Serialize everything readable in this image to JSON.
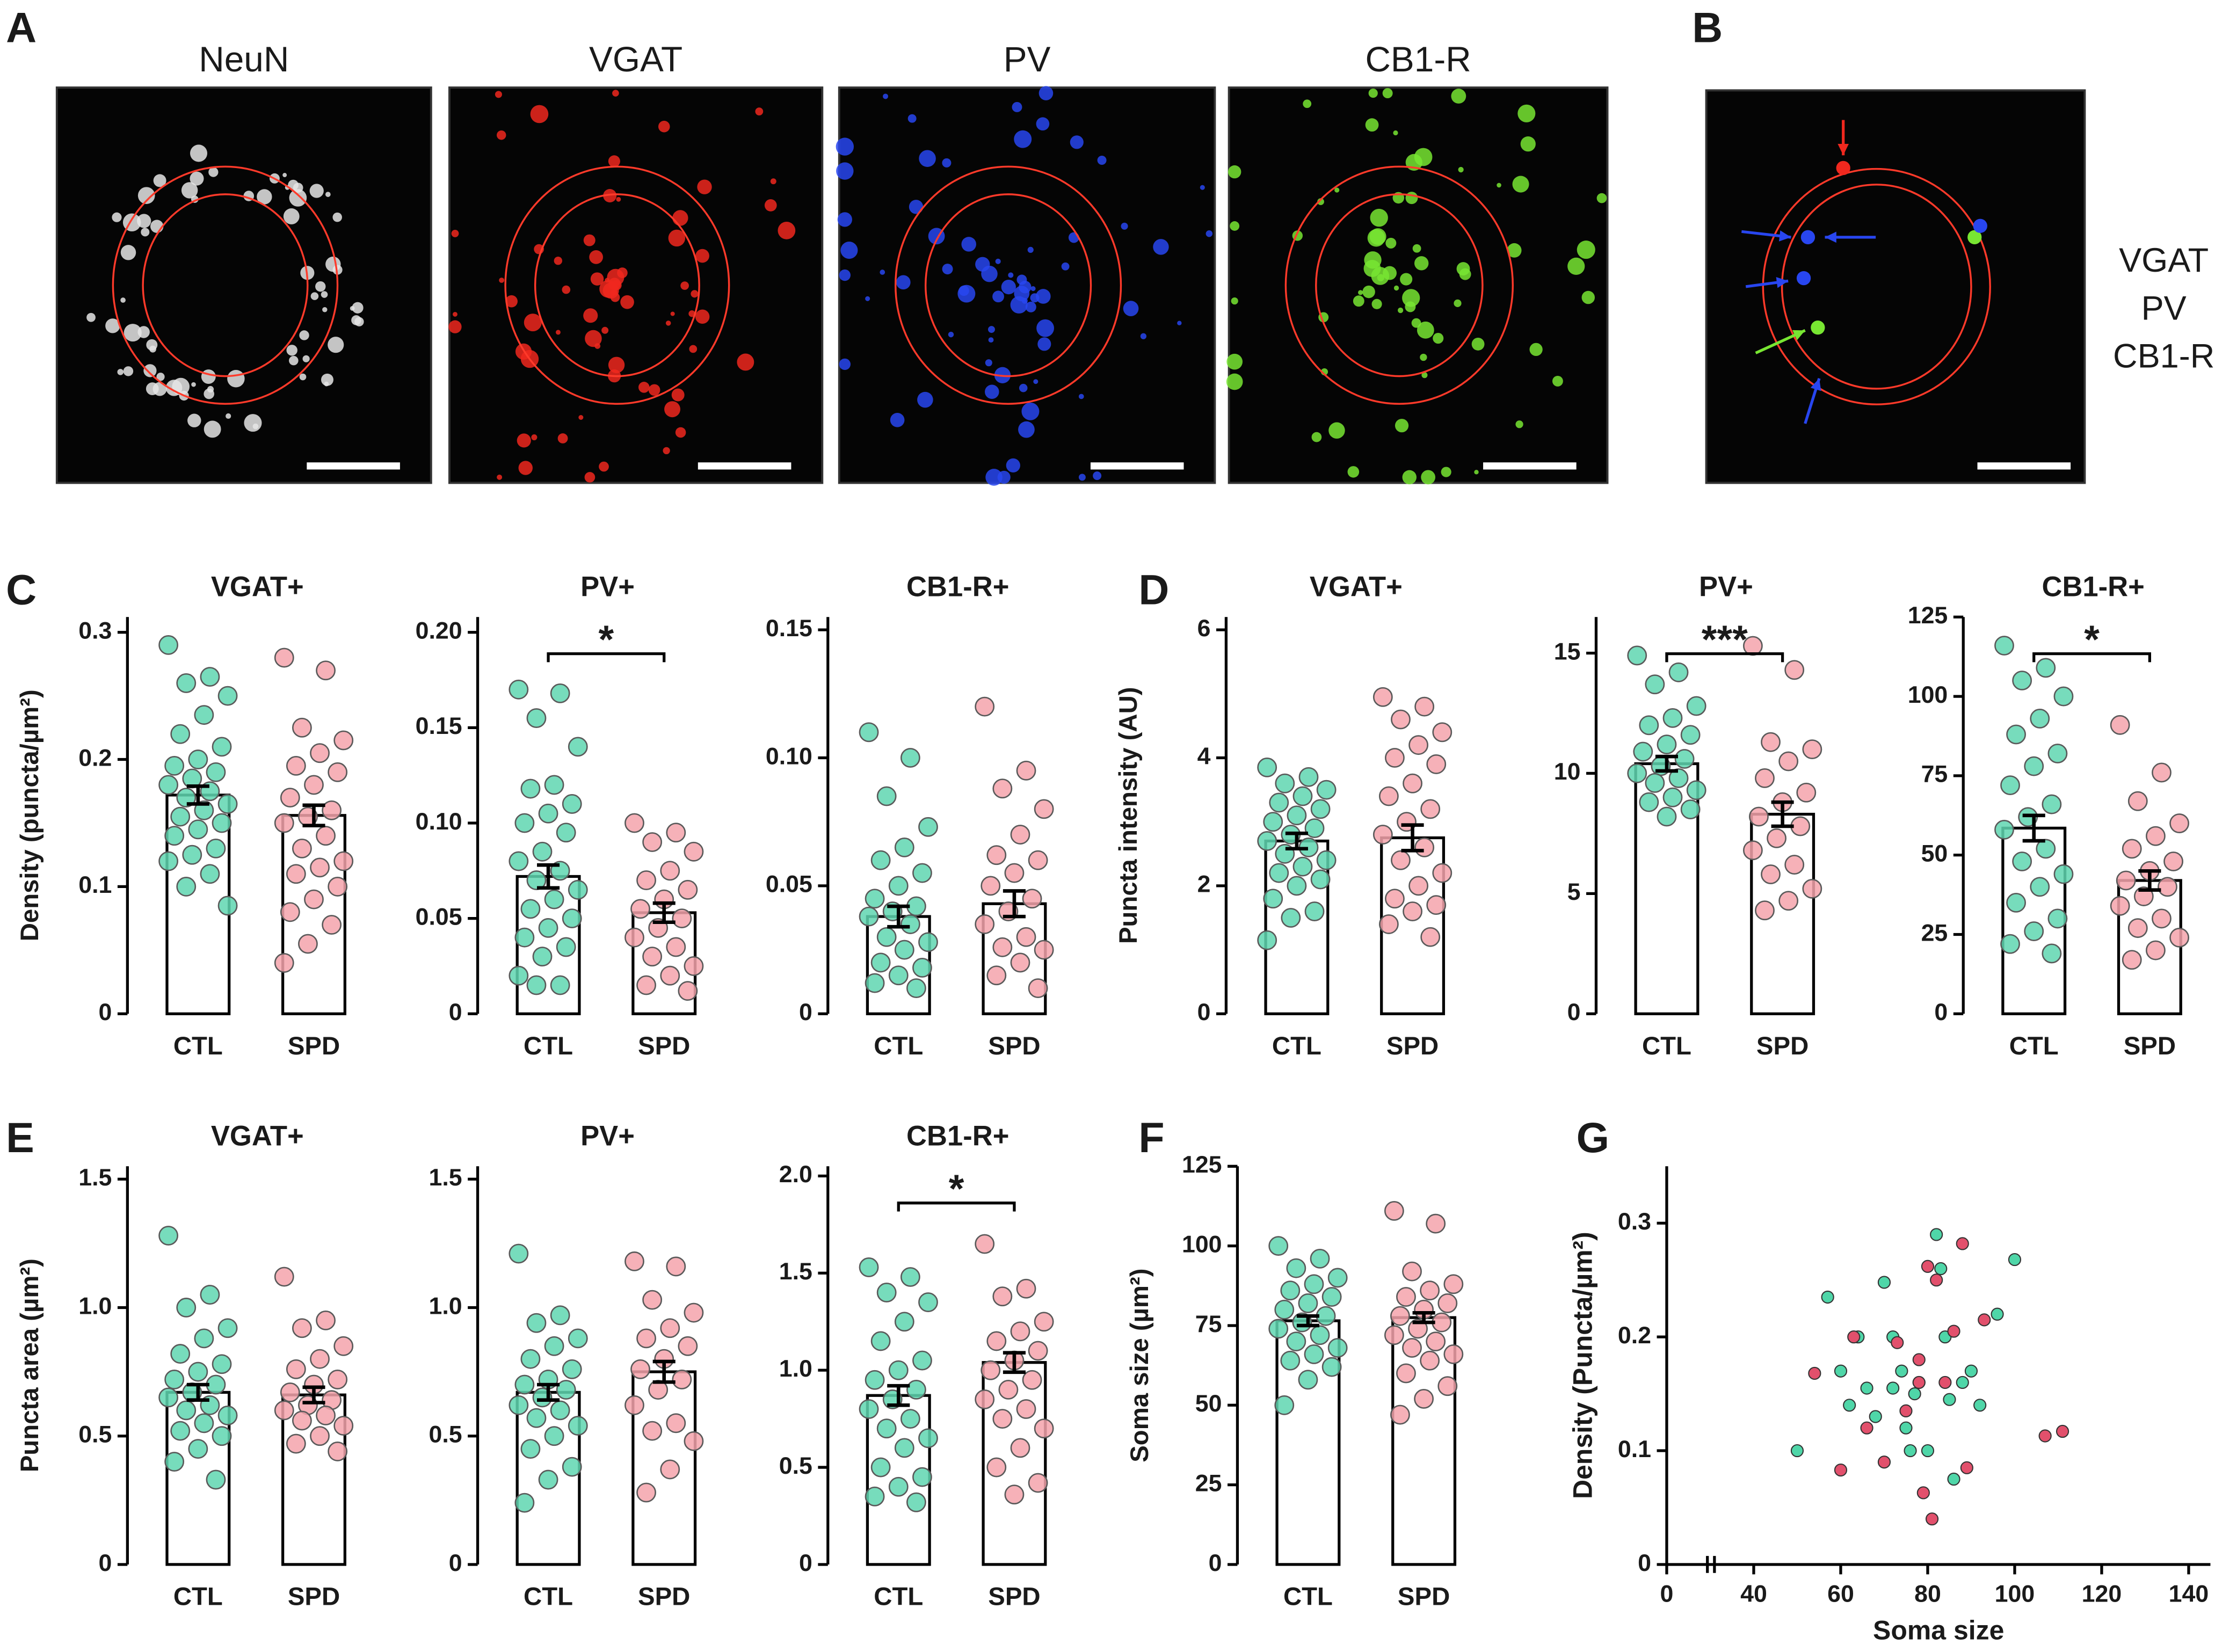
{
  "panel_labels": [
    "A",
    "B",
    "C",
    "D",
    "E",
    "F",
    "G"
  ],
  "micrographs": {
    "channels": [
      {
        "name": "NeuN",
        "color": "#111111"
      },
      {
        "name": "VGAT",
        "color": "#f0281e"
      },
      {
        "name": "PV",
        "color": "#2846f0"
      },
      {
        "name": "CB1-R",
        "color": "#78e632"
      }
    ]
  },
  "chart_data": [
    {
      "type": "bar",
      "title": "VGAT+",
      "ylabel": "Density (puncta/µm²)",
      "categories": [
        "CTL",
        "SPD"
      ],
      "values": [
        0.172,
        0.156
      ],
      "errors": [
        0.007,
        0.008
      ],
      "bar_color": "#ffffff",
      "colors": [
        "#5fd6b0",
        "#f4a3ab"
      ],
      "points": [
        [
          0.29,
          0.265,
          0.26,
          0.25,
          0.235,
          0.22,
          0.21,
          0.2,
          0.195,
          0.19,
          0.185,
          0.18,
          0.175,
          0.17,
          0.165,
          0.16,
          0.155,
          0.15,
          0.145,
          0.14,
          0.13,
          0.125,
          0.12,
          0.11,
          0.1,
          0.085
        ],
        [
          0.28,
          0.27,
          0.225,
          0.215,
          0.205,
          0.195,
          0.19,
          0.18,
          0.17,
          0.16,
          0.155,
          0.15,
          0.14,
          0.13,
          0.12,
          0.115,
          0.11,
          0.1,
          0.09,
          0.08,
          0.07,
          0.055,
          0.04
        ]
      ],
      "ylim": [
        0,
        0.312
      ],
      "yticks": [
        0,
        0.1,
        0.2,
        0.3
      ]
    },
    {
      "type": "bar",
      "title": "PV+",
      "categories": [
        "CTL",
        "SPD"
      ],
      "values": [
        0.072,
        0.053
      ],
      "errors": [
        0.006,
        0.005
      ],
      "bar_color": "#ffffff",
      "colors": [
        "#5fd6b0",
        "#f4a3ab"
      ],
      "points": [
        [
          0.17,
          0.168,
          0.155,
          0.14,
          0.12,
          0.118,
          0.11,
          0.105,
          0.1,
          0.095,
          0.085,
          0.08,
          0.075,
          0.07,
          0.065,
          0.06,
          0.055,
          0.05,
          0.045,
          0.04,
          0.035,
          0.03,
          0.02,
          0.015,
          0.015
        ],
        [
          0.1,
          0.095,
          0.09,
          0.085,
          0.075,
          0.07,
          0.065,
          0.06,
          0.055,
          0.05,
          0.045,
          0.04,
          0.035,
          0.03,
          0.025,
          0.02,
          0.015,
          0.012
        ]
      ],
      "ylim": [
        0,
        0.208
      ],
      "yticks": [
        0,
        0.05,
        {
          "value": 0.1,
          "label": "0.10"
        },
        0.15,
        {
          "value": 0.2,
          "label": "0.20"
        }
      ],
      "significance": "*"
    },
    {
      "type": "bar",
      "title": "CB1-R+",
      "categories": [
        "CTL",
        "SPD"
      ],
      "values": [
        0.038,
        0.043
      ],
      "errors": [
        0.004,
        0.005
      ],
      "bar_color": "#ffffff",
      "colors": [
        "#5fd6b0",
        "#f4a3ab"
      ],
      "points": [
        [
          0.11,
          0.1,
          0.085,
          0.073,
          0.065,
          0.06,
          0.055,
          0.05,
          0.045,
          0.042,
          0.04,
          0.038,
          0.035,
          0.03,
          0.028,
          0.025,
          0.02,
          0.018,
          0.015,
          0.012,
          0.01
        ],
        [
          0.12,
          0.095,
          0.088,
          0.08,
          0.07,
          0.062,
          0.06,
          0.055,
          0.05,
          0.045,
          0.04,
          0.035,
          0.03,
          0.026,
          0.025,
          0.02,
          0.015,
          0.01
        ]
      ],
      "ylim": [
        0,
        0.155
      ],
      "yticks": [
        0,
        0.05,
        {
          "value": 0.1,
          "label": "0.10"
        },
        0.15
      ]
    },
    {
      "type": "bar",
      "title": "VGAT+",
      "ylabel": "Puncta intensity (AU)",
      "categories": [
        "CTL",
        "SPD"
      ],
      "values": [
        2.7,
        2.75
      ],
      "errors": [
        0.12,
        0.2
      ],
      "bar_color": "#ffffff",
      "colors": [
        "#5fd6b0",
        "#f4a3ab"
      ],
      "points": [
        [
          3.85,
          3.7,
          3.6,
          3.5,
          3.4,
          3.3,
          3.2,
          3.1,
          3.0,
          2.9,
          2.8,
          2.7,
          2.6,
          2.5,
          2.4,
          2.3,
          2.2,
          2.1,
          2.0,
          1.8,
          1.6,
          1.5,
          1.15
        ],
        [
          4.95,
          4.8,
          4.6,
          4.4,
          4.2,
          4.0,
          3.9,
          3.6,
          3.4,
          3.2,
          3.0,
          2.8,
          2.6,
          2.4,
          2.2,
          2.0,
          1.8,
          1.7,
          1.6,
          1.4,
          1.2
        ]
      ],
      "ylim": [
        0,
        6.2
      ],
      "yticks": [
        0,
        2,
        4,
        6
      ]
    },
    {
      "type": "bar",
      "title": "PV+",
      "categories": [
        "CTL",
        "SPD"
      ],
      "values": [
        10.4,
        8.3
      ],
      "errors": [
        0.3,
        0.5
      ],
      "bar_color": "#ffffff",
      "colors": [
        "#5fd6b0",
        "#f4a3ab"
      ],
      "points": [
        [
          14.9,
          14.2,
          13.7,
          12.8,
          12.3,
          12.0,
          11.6,
          11.2,
          10.9,
          10.6,
          10.3,
          10.0,
          9.8,
          9.6,
          9.3,
          9.0,
          8.8,
          8.5,
          8.2
        ],
        [
          15.3,
          14.3,
          11.3,
          11.0,
          10.5,
          9.8,
          9.2,
          8.8,
          8.2,
          7.8,
          7.3,
          6.8,
          6.2,
          5.8,
          5.2,
          4.7,
          4.3
        ]
      ],
      "ylim": [
        0,
        16.5
      ],
      "yticks": [
        0,
        5,
        10,
        15
      ],
      "significance": "***"
    },
    {
      "type": "bar",
      "title": "CB1-R+",
      "categories": [
        "CTL",
        "SPD"
      ],
      "values": [
        58.5,
        42
      ],
      "errors": [
        4,
        3
      ],
      "bar_color": "#ffffff",
      "colors": [
        "#5fd6b0",
        "#f4a3ab"
      ],
      "points": [
        [
          116,
          109,
          105,
          100,
          93,
          88,
          82,
          78,
          72,
          66,
          62,
          58,
          52,
          48,
          44,
          40,
          35,
          30,
          26,
          22,
          19
        ],
        [
          91,
          76,
          67,
          60,
          56,
          52,
          48,
          45,
          42,
          40,
          37,
          34,
          30,
          27,
          24,
          20,
          17
        ]
      ],
      "ylim": [
        0,
        125
      ],
      "yticks": [
        0,
        25,
        50,
        75,
        100,
        125
      ],
      "significance": "*"
    },
    {
      "type": "bar",
      "title": "VGAT+",
      "ylabel": "Puncta area (µm²)",
      "categories": [
        "CTL",
        "SPD"
      ],
      "values": [
        0.67,
        0.66
      ],
      "errors": [
        0.03,
        0.03
      ],
      "bar_color": "#ffffff",
      "colors": [
        "#5fd6b0",
        "#f4a3ab"
      ],
      "points": [
        [
          1.28,
          1.05,
          1.0,
          0.92,
          0.88,
          0.82,
          0.78,
          0.75,
          0.72,
          0.7,
          0.67,
          0.65,
          0.62,
          0.6,
          0.58,
          0.55,
          0.52,
          0.5,
          0.45,
          0.4,
          0.33
        ],
        [
          1.12,
          0.95,
          0.92,
          0.85,
          0.8,
          0.76,
          0.72,
          0.7,
          0.67,
          0.64,
          0.62,
          0.6,
          0.58,
          0.56,
          0.54,
          0.5,
          0.47,
          0.44
        ]
      ],
      "ylim": [
        0,
        1.55
      ],
      "yticks": [
        0,
        0.5,
        {
          "value": 1,
          "label": "1.0"
        },
        1.5
      ]
    },
    {
      "type": "bar",
      "title": "PV+",
      "categories": [
        "CTL",
        "SPD"
      ],
      "values": [
        0.67,
        0.75
      ],
      "errors": [
        0.03,
        0.04
      ],
      "bar_color": "#ffffff",
      "colors": [
        "#5fd6b0",
        "#f4a3ab"
      ],
      "points": [
        [
          1.21,
          0.97,
          0.94,
          0.88,
          0.85,
          0.8,
          0.76,
          0.72,
          0.7,
          0.68,
          0.65,
          0.62,
          0.6,
          0.57,
          0.54,
          0.5,
          0.45,
          0.38,
          0.33,
          0.24
        ],
        [
          1.18,
          1.16,
          1.03,
          0.98,
          0.92,
          0.88,
          0.85,
          0.8,
          0.76,
          0.72,
          0.68,
          0.62,
          0.55,
          0.52,
          0.48,
          0.37,
          0.28
        ]
      ],
      "ylim": [
        0,
        1.55
      ],
      "yticks": [
        0,
        0.5,
        {
          "value": 1,
          "label": "1.0"
        },
        1.5
      ]
    },
    {
      "type": "bar",
      "title": "CB1-R+",
      "categories": [
        "CTL",
        "SPD"
      ],
      "values": [
        0.87,
        1.04
      ],
      "errors": [
        0.05,
        0.05
      ],
      "bar_color": "#ffffff",
      "colors": [
        "#5fd6b0",
        "#f4a3ab"
      ],
      "points": [
        [
          1.53,
          1.48,
          1.4,
          1.35,
          1.25,
          1.15,
          1.05,
          1.0,
          0.95,
          0.9,
          0.85,
          0.8,
          0.75,
          0.7,
          0.65,
          0.6,
          0.5,
          0.45,
          0.4,
          0.35,
          0.32
        ],
        [
          1.65,
          1.42,
          1.38,
          1.25,
          1.2,
          1.15,
          1.1,
          1.05,
          1.0,
          0.95,
          0.9,
          0.85,
          0.8,
          0.75,
          0.7,
          0.6,
          0.5,
          0.42,
          0.36
        ]
      ],
      "ylim": [
        0,
        2.05
      ],
      "yticks": [
        0,
        0.5,
        {
          "value": 1,
          "label": "1.0"
        },
        1.5,
        {
          "value": 2,
          "label": "2.0"
        }
      ],
      "significance": "*"
    },
    {
      "type": "bar",
      "ylabel": "Soma size (µm²)",
      "categories": [
        "CTL",
        "SPD"
      ],
      "values": [
        76.5,
        77.5
      ],
      "errors": [
        1.5,
        1.5
      ],
      "bar_color": "#ffffff",
      "colors": [
        "#5fd6b0",
        "#f4a3ab"
      ],
      "points": [
        [
          100,
          96,
          93,
          90,
          88,
          86,
          84,
          82,
          80,
          78,
          76,
          74,
          72,
          70,
          68,
          66,
          64,
          62,
          58,
          50
        ],
        [
          111,
          107,
          92,
          88,
          86,
          84,
          82,
          80,
          78,
          76,
          74,
          72,
          70,
          68,
          66,
          64,
          60,
          56,
          52,
          47
        ]
      ],
      "ylim": [
        0,
        125
      ],
      "yticks": [
        0,
        25,
        50,
        75,
        100,
        125
      ]
    },
    {
      "type": "scatter",
      "xlabel": "Soma size",
      "ylabel": "Density (Puncta/µm²)",
      "series": [
        {
          "color": "#4fd6a8",
          "x": [
            50,
            57,
            60,
            62,
            64,
            66,
            68,
            70,
            72,
            74,
            75,
            77,
            78,
            80,
            82,
            83,
            84,
            85,
            86,
            88,
            90,
            92,
            96,
            100,
            76,
            72
          ],
          "values": [
            0.1,
            0.235,
            0.17,
            0.14,
            0.2,
            0.155,
            0.13,
            0.248,
            0.2,
            0.17,
            0.12,
            0.15,
            0.16,
            0.1,
            0.29,
            0.26,
            0.2,
            0.145,
            0.075,
            0.16,
            0.17,
            0.14,
            0.22,
            0.268,
            0.1,
            0.155
          ]
        },
        {
          "color": "#e2506c",
          "x": [
            54,
            60,
            63,
            66,
            70,
            73,
            75,
            78,
            79,
            80,
            81,
            82,
            84,
            86,
            88,
            89,
            93,
            107,
            111,
            78
          ],
          "values": [
            0.168,
            0.083,
            0.2,
            0.12,
            0.09,
            0.195,
            0.135,
            0.18,
            0.063,
            0.262,
            0.04,
            0.25,
            0.16,
            0.205,
            0.282,
            0.085,
            0.215,
            0.113,
            0.117,
            0.16
          ]
        }
      ],
      "xlim": [
        0,
        145
      ],
      "xticks": [
        0,
        40,
        60,
        80,
        100,
        120,
        140
      ],
      "axis_break": true,
      "ylim": [
        0,
        0.35
      ],
      "yticks": [
        0,
        0.1,
        0.2,
        0.3
      ]
    }
  ]
}
